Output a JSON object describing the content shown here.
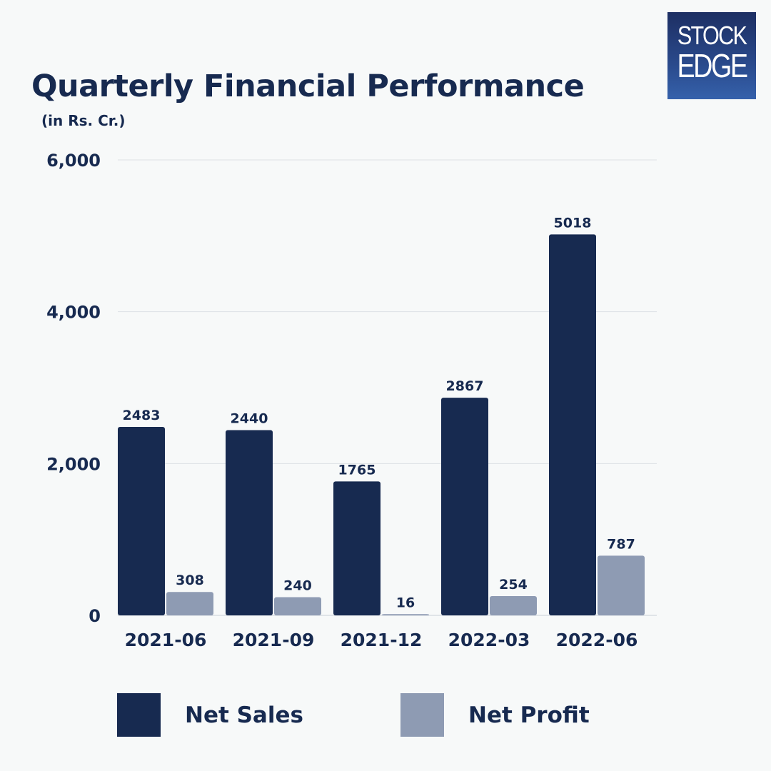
{
  "logo": {
    "line1": "STOCK",
    "line2": "EDGE"
  },
  "chart_data": {
    "type": "bar",
    "title": "Quarterly Financial Performance",
    "subtitle": "(in Rs. Cr.)",
    "xlabel": "",
    "ylabel": "",
    "ylim": [
      0,
      6000
    ],
    "yticks": [
      0,
      2000,
      4000,
      6000
    ],
    "ytick_labels": [
      "0",
      "2,000",
      "4,000",
      "6,000"
    ],
    "grid": true,
    "legend_position": "bottom",
    "categories": [
      "2021-06",
      "2021-09",
      "2021-12",
      "2022-03",
      "2022-06"
    ],
    "series": [
      {
        "name": "Net Sales",
        "color": "#172a50",
        "values": [
          2483,
          2440,
          1765,
          2867,
          5018
        ]
      },
      {
        "name": "Net Profit",
        "color": "#8e9bb3",
        "values": [
          308,
          240,
          16,
          254,
          787
        ]
      }
    ]
  }
}
